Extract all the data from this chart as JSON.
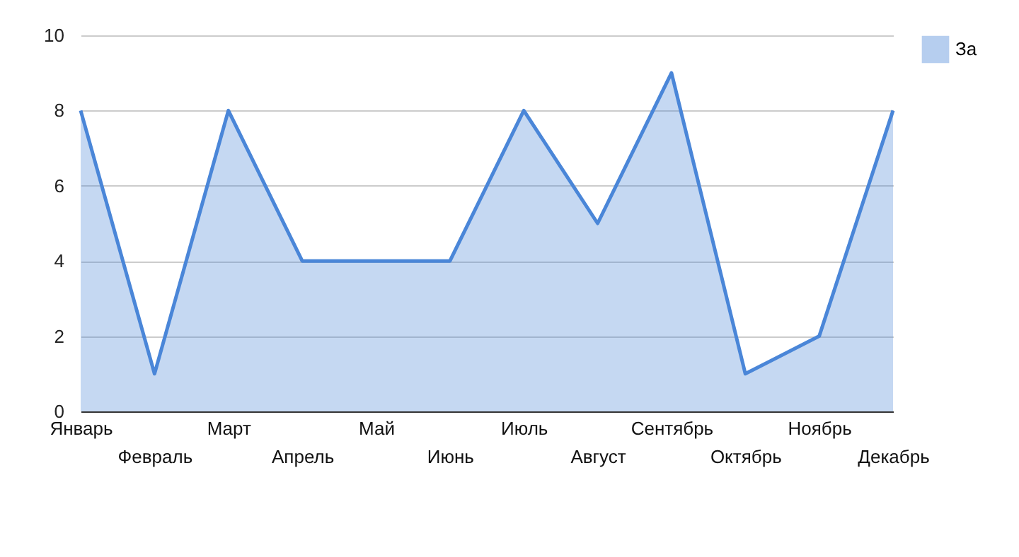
{
  "chart_data": {
    "type": "area",
    "categories": [
      "Январь",
      "Февраль",
      "Март",
      "Апрель",
      "Май",
      "Июнь",
      "Июль",
      "Август",
      "Сентябрь",
      "Октябрь",
      "Ноябрь",
      "Декабрь"
    ],
    "series": [
      {
        "name": "За",
        "color": "#4a86d8",
        "values": [
          8,
          1,
          8,
          4,
          4,
          4,
          8,
          5,
          9,
          1,
          2,
          8
        ]
      }
    ],
    "ylim": [
      0,
      10
    ],
    "yticks": [
      0,
      2,
      4,
      6,
      8,
      10
    ],
    "grid": "y",
    "legend": "top right"
  }
}
